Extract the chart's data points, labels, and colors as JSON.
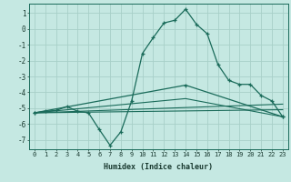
{
  "xlabel": "Humidex (Indice chaleur)",
  "bg_color": "#c5e8e2",
  "line_color": "#1a6b5a",
  "grid_color": "#a8d0c8",
  "x_ticks": [
    0,
    1,
    2,
    3,
    4,
    5,
    6,
    7,
    8,
    9,
    10,
    11,
    12,
    13,
    14,
    15,
    16,
    17,
    18,
    19,
    20,
    21,
    22,
    23
  ],
  "y_ticks": [
    1,
    0,
    -1,
    -2,
    -3,
    -4,
    -5,
    -6,
    -7
  ],
  "ylim": [
    -7.6,
    1.6
  ],
  "xlim": [
    -0.5,
    23.5
  ],
  "line1_x": [
    0,
    1,
    2,
    3,
    4,
    5,
    6,
    7,
    8,
    9,
    10,
    11,
    12,
    13,
    14,
    15,
    16,
    17,
    18,
    19,
    20,
    21,
    22,
    23
  ],
  "line1_y": [
    -5.3,
    -5.2,
    -5.15,
    -4.9,
    -5.2,
    -5.3,
    -6.35,
    -7.35,
    -6.5,
    -4.55,
    -1.55,
    -0.55,
    0.38,
    0.55,
    1.25,
    0.3,
    -0.3,
    -2.25,
    -3.25,
    -3.5,
    -3.5,
    -4.2,
    -4.55,
    -5.55
  ],
  "line2_x": [
    0,
    14,
    23
  ],
  "line2_y": [
    -5.3,
    -3.55,
    -5.55
  ],
  "line3_x": [
    0,
    23
  ],
  "line3_y": [
    -5.3,
    -5.1
  ],
  "line4_x": [
    0,
    23
  ],
  "line4_y": [
    -5.3,
    -4.75
  ],
  "line5_x": [
    0,
    14,
    23
  ],
  "line5_y": [
    -5.3,
    -4.4,
    -5.55
  ]
}
